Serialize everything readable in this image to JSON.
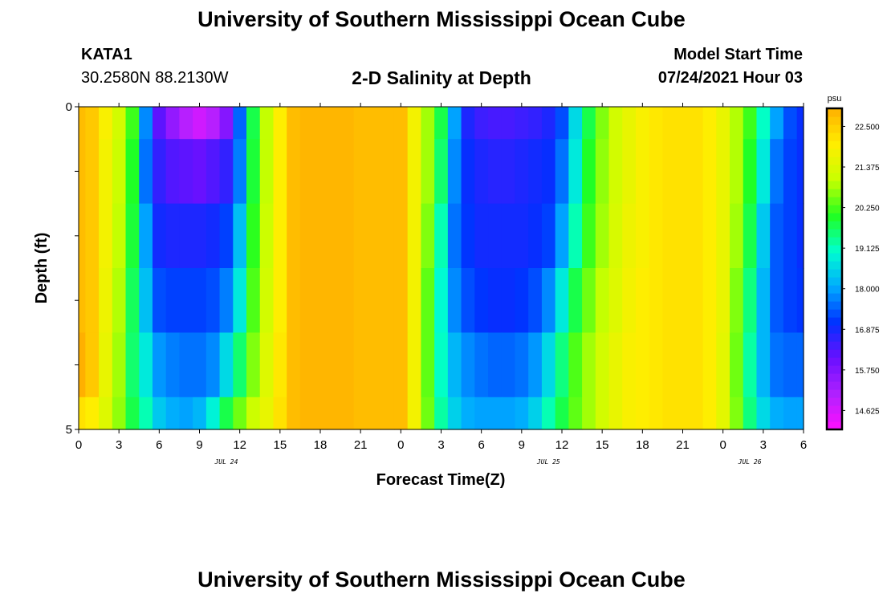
{
  "header": {
    "title": "University of Southern Mississippi Ocean Cube",
    "station_id": "KATA1",
    "station_coords": "30.2580N  88.2130W",
    "plot_title": "2-D Salinity at Depth",
    "model_start_label": "Model Start Time",
    "model_start_time": "07/24/2021 Hour 03"
  },
  "footer": {
    "title": "University of Southern Mississippi Ocean Cube"
  },
  "chart_data": {
    "type": "heatmap",
    "xlabel": "Forecast Time(Z)",
    "ylabel": "Depth (ft)",
    "x_ticks": [
      "0",
      "3",
      "6",
      "9",
      "12",
      "15",
      "18",
      "21",
      "0",
      "3",
      "6",
      "9",
      "12",
      "15",
      "18",
      "21",
      "0",
      "3",
      "6"
    ],
    "date_labels": [
      {
        "label": "JUL 24",
        "hour": 11
      },
      {
        "label": "JUL 25",
        "hour": 35
      },
      {
        "label": "JUL 26",
        "hour": 50
      }
    ],
    "xlim": [
      0,
      54
    ],
    "y_ticks": [
      "0",
      "5"
    ],
    "ylim": [
      0,
      5
    ],
    "colorbar": {
      "unit": "psu",
      "ticks": [
        "22.500",
        "21.375",
        "20.250",
        "19.125",
        "18.000",
        "16.875",
        "15.750",
        "14.625"
      ],
      "range": [
        14.1,
        23.0
      ],
      "colors": [
        "#ff10ff",
        "#b020ff",
        "#6a10ff",
        "#0030ff",
        "#00aaff",
        "#00ffd0",
        "#20ff20",
        "#c8ff00",
        "#ffee00",
        "#ffb000"
      ]
    },
    "depth_layers": [
      0.0,
      0.5,
      1.5,
      2.5,
      3.5,
      4.5,
      5.0
    ],
    "hours": [
      0,
      1,
      2,
      3,
      4,
      5,
      6,
      7,
      8,
      9,
      10,
      11,
      12,
      13,
      14,
      15,
      16,
      17,
      18,
      19,
      20,
      21,
      22,
      23,
      24,
      25,
      26,
      27,
      28,
      29,
      30,
      31,
      32,
      33,
      34,
      35,
      36,
      37,
      38,
      39,
      40,
      41,
      42,
      43,
      44,
      45,
      46,
      47,
      48,
      49,
      50,
      51,
      52,
      53,
      54
    ],
    "salinity": [
      [
        22.8,
        22.6,
        21.9,
        21.2,
        20.2,
        17.8,
        16.2,
        15.5,
        15.0,
        14.7,
        15.0,
        15.7,
        17.5,
        19.8,
        21.0,
        22.0,
        22.8,
        22.9,
        22.9,
        22.9,
        22.9,
        22.8,
        22.8,
        22.8,
        22.8,
        21.8,
        20.8,
        19.8,
        18.0,
        16.8,
        16.5,
        16.4,
        16.4,
        16.5,
        16.6,
        16.8,
        17.3,
        18.6,
        19.8,
        20.6,
        21.2,
        21.6,
        21.9,
        22.1,
        22.2,
        22.2,
        22.2,
        22.0,
        21.6,
        20.9,
        20.2,
        19.1,
        18.0,
        17.3,
        17.0
      ],
      [
        22.8,
        22.6,
        21.8,
        21.1,
        20.0,
        17.6,
        16.6,
        16.3,
        16.2,
        16.1,
        16.3,
        16.6,
        17.7,
        19.9,
        21.0,
        22.0,
        22.8,
        22.9,
        22.9,
        22.9,
        22.9,
        22.8,
        22.8,
        22.8,
        22.8,
        21.8,
        20.8,
        19.6,
        17.8,
        17.0,
        16.8,
        16.7,
        16.7,
        16.8,
        16.9,
        17.0,
        17.6,
        18.8,
        20.0,
        20.7,
        21.2,
        21.6,
        21.9,
        22.1,
        22.2,
        22.2,
        22.2,
        22.0,
        21.6,
        20.9,
        20.0,
        18.8,
        17.6,
        17.2,
        17.0
      ],
      [
        22.8,
        22.6,
        21.8,
        21.0,
        19.9,
        18.0,
        16.9,
        16.8,
        16.8,
        16.8,
        16.9,
        17.2,
        18.3,
        20.1,
        21.1,
        22.0,
        22.8,
        22.9,
        22.9,
        22.9,
        22.9,
        22.8,
        22.8,
        22.8,
        22.8,
        21.8,
        20.6,
        19.2,
        17.6,
        17.1,
        16.9,
        16.9,
        16.9,
        16.9,
        17.0,
        17.2,
        18.0,
        19.2,
        20.2,
        20.8,
        21.3,
        21.7,
        21.9,
        22.1,
        22.2,
        22.2,
        22.2,
        22.0,
        21.6,
        20.8,
        19.8,
        18.4,
        17.4,
        17.2,
        17.0
      ],
      [
        22.8,
        22.6,
        21.7,
        20.9,
        19.7,
        18.3,
        17.3,
        17.2,
        17.2,
        17.2,
        17.3,
        17.7,
        18.8,
        20.3,
        21.2,
        22.0,
        22.8,
        22.9,
        22.9,
        22.9,
        22.9,
        22.8,
        22.8,
        22.8,
        22.8,
        21.8,
        20.4,
        19.0,
        17.8,
        17.3,
        17.1,
        17.0,
        17.0,
        17.1,
        17.3,
        17.8,
        18.8,
        19.8,
        20.5,
        21.0,
        21.4,
        21.8,
        22.0,
        22.1,
        22.2,
        22.2,
        22.2,
        22.0,
        21.6,
        20.6,
        19.5,
        18.2,
        17.4,
        17.2,
        17.1
      ],
      [
        23.0,
        22.6,
        21.6,
        20.8,
        19.6,
        18.8,
        17.9,
        17.7,
        17.6,
        17.6,
        17.8,
        18.6,
        19.6,
        20.6,
        21.4,
        22.1,
        22.8,
        22.9,
        22.9,
        22.9,
        22.9,
        22.8,
        22.8,
        22.8,
        22.8,
        21.8,
        20.4,
        19.1,
        18.2,
        17.8,
        17.6,
        17.5,
        17.5,
        17.6,
        17.9,
        18.6,
        19.5,
        20.3,
        20.8,
        21.2,
        21.6,
        21.9,
        22.0,
        22.1,
        22.2,
        22.2,
        22.2,
        22.0,
        21.5,
        20.5,
        19.3,
        18.2,
        17.6,
        17.5,
        17.5
      ],
      [
        22.2,
        22.0,
        21.4,
        20.7,
        19.8,
        19.2,
        18.4,
        18.1,
        18.0,
        18.2,
        18.9,
        19.8,
        20.5,
        21.1,
        21.6,
        22.2,
        22.8,
        22.9,
        22.9,
        22.9,
        22.9,
        22.8,
        22.8,
        22.8,
        22.8,
        21.8,
        20.5,
        19.3,
        18.5,
        18.1,
        18.0,
        18.0,
        18.0,
        18.1,
        18.5,
        19.2,
        19.8,
        20.4,
        20.8,
        21.2,
        21.6,
        21.9,
        22.0,
        22.1,
        22.2,
        22.2,
        22.2,
        22.0,
        21.5,
        20.6,
        19.5,
        18.6,
        18.1,
        18.0,
        18.0
      ]
    ]
  }
}
